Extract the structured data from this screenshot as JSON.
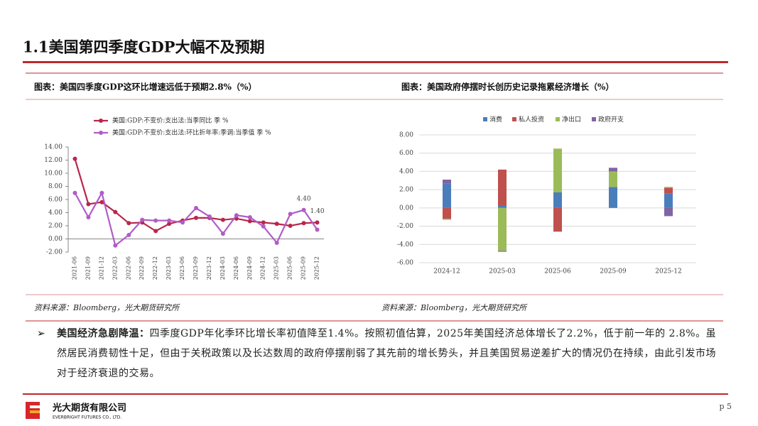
{
  "header": {
    "title": "1.1美国第四季度GDP大幅不及预期"
  },
  "chart_data": [
    {
      "type": "line",
      "title": "图表：美国四季度GDP这环比增速远低于预期2.8%（%）",
      "categories": [
        "2021-06",
        "2021-09",
        "2021-12",
        "2022-03",
        "2022-06",
        "2022-09",
        "2022-12",
        "2023-03",
        "2023-06",
        "2023-09",
        "2023-12",
        "2024-03",
        "2024-06",
        "2024-09",
        "2024-12",
        "2025-03",
        "2025-06",
        "2025-09",
        "2025-12"
      ],
      "series": [
        {
          "name": "美国:GDP:不变价:支出法:当季同比 季 %",
          "color": "#b8274a",
          "values": [
            12.2,
            5.3,
            5.6,
            4.1,
            2.4,
            2.5,
            1.2,
            2.3,
            2.8,
            3.2,
            3.2,
            2.9,
            3.1,
            2.7,
            2.5,
            2.3,
            2.0,
            2.4,
            2.5
          ]
        },
        {
          "name": "美国:GDP:不变价:支出法:环比折年率:季调:当季值 季 %",
          "color": "#b05cc8",
          "values": [
            7.0,
            3.3,
            7.0,
            -1.0,
            0.6,
            2.9,
            2.8,
            2.8,
            2.5,
            4.7,
            3.4,
            0.8,
            3.6,
            3.3,
            1.9,
            -0.6,
            3.8,
            4.4,
            1.4
          ],
          "value_labels": [
            null,
            null,
            null,
            null,
            null,
            null,
            null,
            null,
            null,
            null,
            null,
            null,
            null,
            null,
            null,
            null,
            null,
            "4.40",
            "1.40"
          ]
        }
      ],
      "ylim": [
        -2,
        14
      ],
      "yticks": [
        {
          "value": -2,
          "label": "-2.00"
        },
        {
          "value": 0,
          "label": "0.00"
        },
        {
          "value": 2,
          "label": "2.00"
        },
        {
          "value": 4,
          "label": "4.00"
        },
        {
          "value": 6,
          "label": "6.00"
        },
        {
          "value": 8,
          "label": "8.00"
        },
        {
          "value": 10,
          "label": "10.00"
        },
        {
          "value": 12,
          "label": "12.00"
        },
        {
          "value": 14,
          "label": "14.00"
        }
      ],
      "grid": false,
      "legend": "top-left",
      "source": "资料来源：Bloomberg，光大期货研究所"
    },
    {
      "type": "stacked-bar",
      "title": "图表：美国政府停摆时长创历史记录拖累经济增长（%）",
      "categories": [
        "2024-12",
        "2025-03",
        "2025-06",
        "2025-09",
        "2025-12"
      ],
      "series": [
        {
          "name": "消费",
          "color": "#4a7ebb",
          "values": [
            2.7,
            0.3,
            1.7,
            2.3,
            1.6
          ]
        },
        {
          "name": "私人投资",
          "color": "#c0504d",
          "values": [
            -1.2,
            3.9,
            -2.6,
            0.0,
            0.6
          ]
        },
        {
          "name": "净出口",
          "color": "#9bbb59",
          "values": [
            -0.1,
            -4.7,
            4.8,
            1.7,
            0.1
          ]
        },
        {
          "name": "政府开支",
          "color": "#8064a2",
          "values": [
            0.4,
            -0.1,
            0.0,
            0.4,
            -0.9
          ]
        }
      ],
      "ylim": [
        -6,
        8
      ],
      "yticks": [
        {
          "value": -6,
          "label": "-6.00"
        },
        {
          "value": -4,
          "label": "-4.00"
        },
        {
          "value": -2,
          "label": "-2.00"
        },
        {
          "value": 0,
          "label": "0.00"
        },
        {
          "value": 2,
          "label": "2.00"
        },
        {
          "value": 4,
          "label": "4.00"
        },
        {
          "value": 6,
          "label": "6.00"
        },
        {
          "value": 8,
          "label": "8.00"
        }
      ],
      "grid": true,
      "legend": "top",
      "source": "资料来源：Bloomberg，光大期货研究所"
    }
  ],
  "bullet": {
    "label": "美国经济急剧降温：",
    "text": "四季度GDP年化季环比增长率初值降至1.4%。按照初值估算，2025年美国经济总体增长了2.2%，低于前一年的 2.8%。虽然居民消费韧性十足，但由于关税政策以及长达数周的政府停摆削弱了其先前的增长势头，并且美国贸易逆差扩大的情况仍在持续，由此引发市场对于经济衰退的交易。"
  },
  "footer": {
    "company": "光大期货有限公司",
    "company_en": "EVERBRIGHT FUTURES CO., LTD.",
    "page": "p 5"
  }
}
